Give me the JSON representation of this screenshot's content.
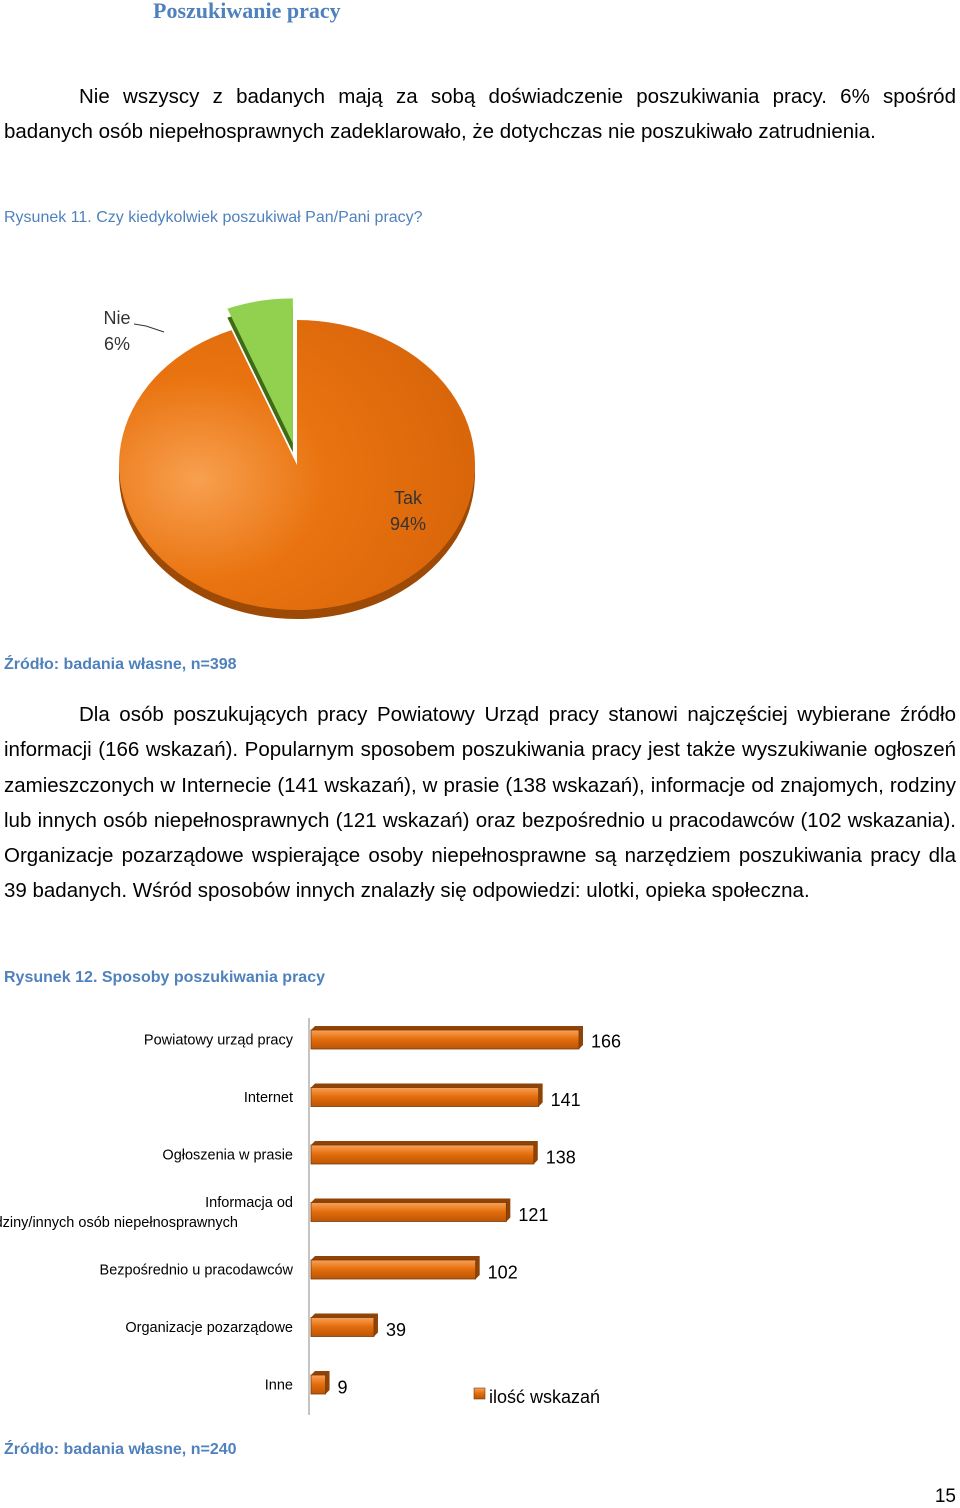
{
  "heading": "Poszukiwanie pracy",
  "paragraph1": "Nie wszyscy z badanych mają za sobą doświadczenie poszukiwania pracy. 6% spośród badanych osób niepełnosprawnych zadeklarowało, że dotychczas nie poszukiwało zatrudnienia.",
  "figure1": {
    "caption": "Rysunek 11. Czy kiedykolwiek poszukiwał Pan/Pani pracy?",
    "source": "Źródło: badania własne, n=398"
  },
  "paragraph2": "Dla osób poszukujących pracy Powiatowy Urząd pracy stanowi najczęściej wybierane źródło informacji (166 wskazań). Popularnym sposobem poszukiwania pracy jest także wyszukiwanie ogłoszeń zamieszczonych w Internecie (141 wskazań), w prasie (138 wskazań), informacje od znajomych, rodziny lub innych osób niepełnosprawnych (121 wskazań) oraz bezpośrednio u pracodawców (102 wskazania). Organizacje pozarządowe wspierające osoby niepełnosprawne są narzędziem poszukiwania pracy dla 39 badanych. Wśród sposobów innych znalazły się odpowiedzi: ulotki, opieka społeczna.",
  "figure2": {
    "caption": "Rysunek 12. Sposoby poszukiwania pracy",
    "source": "Źródło: badania własne, n=240"
  },
  "page_number": "15",
  "colors": {
    "heading": "#4f81bd",
    "pie_tak": "#e36c0a",
    "pie_nie": "#92d050",
    "bar": "#e36c0a"
  },
  "chart_data": [
    {
      "type": "pie",
      "slices": [
        {
          "label": "Tak",
          "value": 94,
          "value_label": "94%"
        },
        {
          "label": "Nie",
          "value": 6,
          "value_label": "6%"
        }
      ],
      "style": "3d-exploded"
    },
    {
      "type": "bar",
      "orientation": "horizontal",
      "categories": [
        "Powiatowy urząd pracy",
        "Internet",
        "Ogłoszenia w prasie",
        "Informacja od znajomych/rodziny/innych osób niepełnosprawnych",
        "Bezpośrednio u pracodawców",
        "Organizacje pozarządowe",
        "Inne"
      ],
      "series": [
        {
          "name": "ilość wskazań",
          "values": [
            166,
            141,
            138,
            121,
            102,
            39,
            9
          ]
        }
      ],
      "xlim": [
        0,
        166
      ],
      "grid": false,
      "legend": "bottom-right"
    }
  ]
}
